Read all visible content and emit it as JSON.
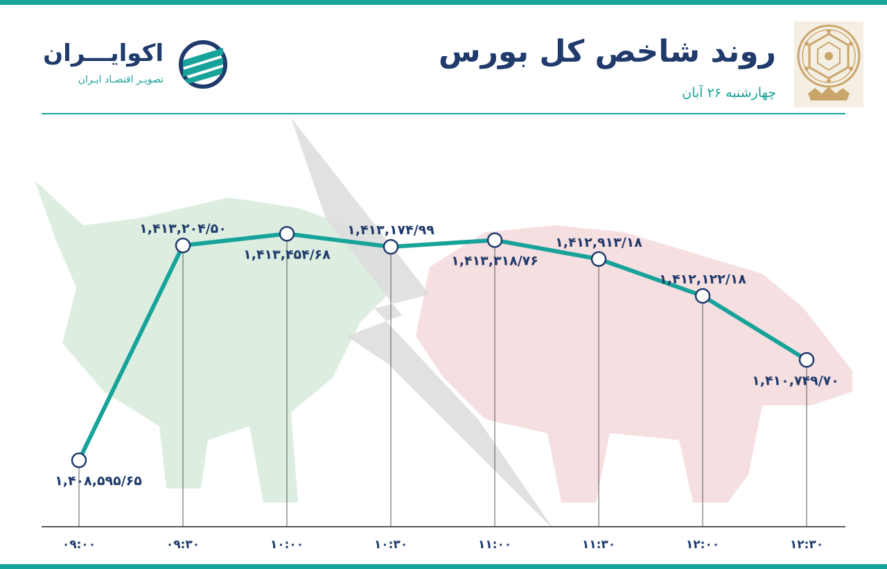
{
  "header": {
    "title": "روند شاخص کل بورس",
    "subtitle": "چهارشنبه ۲۶ آبان"
  },
  "brand": {
    "name": "اکوایـــران",
    "tagline": "تصویـر اقتصـاد ایـران"
  },
  "colors": {
    "accent": "#17a39a",
    "text": "#1f3a6b",
    "bull": "#d7ebdc",
    "bear": "#f4d9da",
    "arrow": "#dcdcdc",
    "emblem": "#c9a56a"
  },
  "icons": {
    "emblem": "tehran-stock-exchange-emblem-icon",
    "brand": "ecoiran-logo-icon",
    "background": "bull-bear-silhouette"
  },
  "chart_data": {
    "type": "line",
    "x": [
      "۰۹:۰۰",
      "۰۹:۳۰",
      "۱۰:۰۰",
      "۱۰:۳۰",
      "۱۱:۰۰",
      "۱۱:۳۰",
      "۱۲:۰۰",
      "۱۲:۳۰"
    ],
    "values": [
      1408595.65,
      1413204.5,
      1413454.68,
      1413174.99,
      1413318.76,
      1412913.18,
      1412122.18,
      1410749.7
    ],
    "data_labels": [
      "۱,۴۰۸,۵۹۵/۶۵",
      "۱,۴۱۳,۲۰۴/۵۰",
      "۱,۴۱۳,۴۵۴/۶۸",
      "۱,۴۱۳,۱۷۴/۹۹",
      "۱,۴۱۳,۳۱۸/۷۶",
      "۱,۴۱۲,۹۱۳/۱۸",
      "۱,۴۱۲,۱۲۲/۱۸",
      "۱,۴۱۰,۷۴۹/۷۰"
    ],
    "label_side": [
      "below",
      "above",
      "below",
      "above",
      "below",
      "above",
      "above",
      "below"
    ],
    "title": "",
    "xlabel": "",
    "ylabel": "",
    "ylim": [
      1407200,
      1413980
    ],
    "grid": false,
    "line_color": "#17a39a"
  }
}
